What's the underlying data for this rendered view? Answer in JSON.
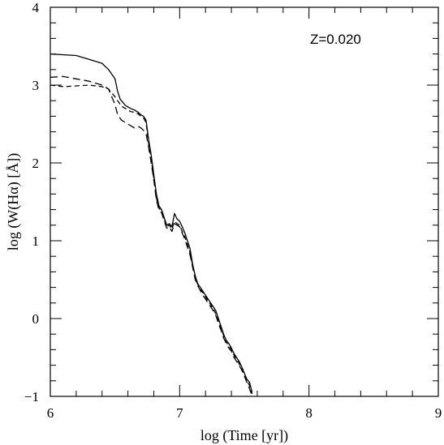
{
  "chart_data": {
    "type": "line",
    "title": "",
    "annotation": "Z=0.020",
    "xlabel": "log (Time [yr])",
    "ylabel": "log (W(Hα) [Å])",
    "xlim": [
      6,
      9
    ],
    "ylim": [
      -1,
      4
    ],
    "x_ticks": [
      "6",
      "7",
      "8",
      "9"
    ],
    "y_ticks": [
      "−1",
      "0",
      "1",
      "2",
      "3",
      "4"
    ],
    "grid": false,
    "legend": "none",
    "series": [
      {
        "style": "solid",
        "color": "#000000",
        "x": [
          6.0,
          6.2,
          6.3,
          6.4,
          6.45,
          6.5,
          6.52,
          6.54,
          6.56,
          6.58,
          6.6,
          6.62,
          6.65,
          6.68,
          6.7,
          6.72,
          6.74,
          6.76,
          6.78,
          6.8,
          6.82,
          6.84,
          6.86,
          6.88,
          6.9,
          6.92,
          6.94,
          6.96,
          6.98,
          7.0,
          7.02,
          7.04,
          7.06,
          7.08,
          7.1,
          7.12,
          7.14,
          7.16,
          7.18,
          7.2,
          7.22,
          7.24,
          7.26,
          7.28,
          7.3,
          7.32,
          7.34,
          7.36,
          7.38,
          7.4,
          7.42,
          7.44,
          7.46,
          7.48,
          7.5,
          7.52,
          7.54,
          7.56
        ],
        "y": [
          3.4,
          3.38,
          3.33,
          3.28,
          3.2,
          3.08,
          2.92,
          2.82,
          2.78,
          2.74,
          2.72,
          2.7,
          2.68,
          2.65,
          2.62,
          2.6,
          2.55,
          2.3,
          2.1,
          1.85,
          1.6,
          1.45,
          1.4,
          1.3,
          1.2,
          1.22,
          1.18,
          1.35,
          1.28,
          1.25,
          1.18,
          1.1,
          1.0,
          0.9,
          0.7,
          0.55,
          0.45,
          0.4,
          0.35,
          0.3,
          0.25,
          0.2,
          0.15,
          0.1,
          0.0,
          -0.1,
          -0.2,
          -0.28,
          -0.32,
          -0.38,
          -0.45,
          -0.5,
          -0.55,
          -0.62,
          -0.7,
          -0.78,
          -0.82,
          -0.95
        ]
      },
      {
        "style": "dashed",
        "color": "#000000",
        "x": [
          6.0,
          6.1,
          6.2,
          6.3,
          6.4,
          6.45,
          6.5,
          6.52,
          6.55,
          6.58,
          6.6,
          6.62,
          6.65,
          6.68,
          6.7,
          6.72,
          6.74,
          6.76,
          6.78,
          6.8,
          6.82,
          6.84,
          6.86,
          6.88,
          6.9,
          6.92,
          6.94,
          6.96,
          6.98,
          7.0,
          7.02,
          7.04,
          7.06,
          7.08,
          7.1,
          7.12,
          7.14,
          7.16,
          7.18,
          7.2,
          7.22,
          7.24,
          7.26,
          7.28,
          7.3,
          7.32,
          7.34,
          7.36,
          7.38,
          7.4,
          7.42,
          7.44,
          7.46,
          7.48,
          7.5,
          7.52,
          7.54,
          7.56
        ],
        "y": [
          3.0,
          2.98,
          2.99,
          3.0,
          2.98,
          2.95,
          2.85,
          2.8,
          2.73,
          2.7,
          2.68,
          2.66,
          2.65,
          2.63,
          2.6,
          2.58,
          2.52,
          2.25,
          2.05,
          1.8,
          1.55,
          1.42,
          1.38,
          1.28,
          1.18,
          1.2,
          1.15,
          1.25,
          1.22,
          1.2,
          1.12,
          1.05,
          0.95,
          0.85,
          0.68,
          0.52,
          0.44,
          0.38,
          0.33,
          0.28,
          0.22,
          0.18,
          0.12,
          0.06,
          -0.04,
          -0.12,
          -0.22,
          -0.3,
          -0.35,
          -0.4,
          -0.47,
          -0.52,
          -0.58,
          -0.64,
          -0.72,
          -0.8,
          -0.86,
          -0.97
        ]
      },
      {
        "style": "long-dashed",
        "color": "#000000",
        "x": [
          6.0,
          6.1,
          6.2,
          6.3,
          6.4,
          6.45,
          6.5,
          6.52,
          6.55,
          6.58,
          6.6,
          6.62,
          6.65,
          6.68,
          6.7,
          6.72,
          6.74,
          6.76,
          6.78,
          6.8,
          6.82,
          6.84,
          6.86,
          6.88,
          6.9,
          6.92,
          6.94,
          6.96,
          6.98,
          7.0,
          7.02,
          7.04,
          7.06,
          7.08,
          7.1,
          7.12,
          7.14,
          7.16,
          7.18,
          7.2,
          7.22,
          7.24,
          7.26,
          7.28,
          7.3,
          7.32,
          7.34,
          7.36,
          7.38,
          7.4,
          7.42,
          7.44,
          7.46,
          7.48,
          7.5,
          7.52,
          7.54,
          7.56
        ],
        "y": [
          3.1,
          3.11,
          3.08,
          3.05,
          3.0,
          2.95,
          2.75,
          2.62,
          2.55,
          2.52,
          2.5,
          2.48,
          2.45,
          2.47,
          2.45,
          2.42,
          2.38,
          2.2,
          2.0,
          1.78,
          1.52,
          1.4,
          1.36,
          1.26,
          1.16,
          1.18,
          1.12,
          1.22,
          1.2,
          1.18,
          1.1,
          1.02,
          0.92,
          0.82,
          0.66,
          0.5,
          0.42,
          0.36,
          0.3,
          0.25,
          0.2,
          0.15,
          0.1,
          0.04,
          -0.06,
          -0.15,
          -0.25,
          -0.32,
          -0.38,
          -0.42,
          -0.5,
          -0.55,
          -0.6,
          -0.66,
          -0.74,
          -0.82,
          -0.9,
          -1.0
        ]
      }
    ]
  }
}
